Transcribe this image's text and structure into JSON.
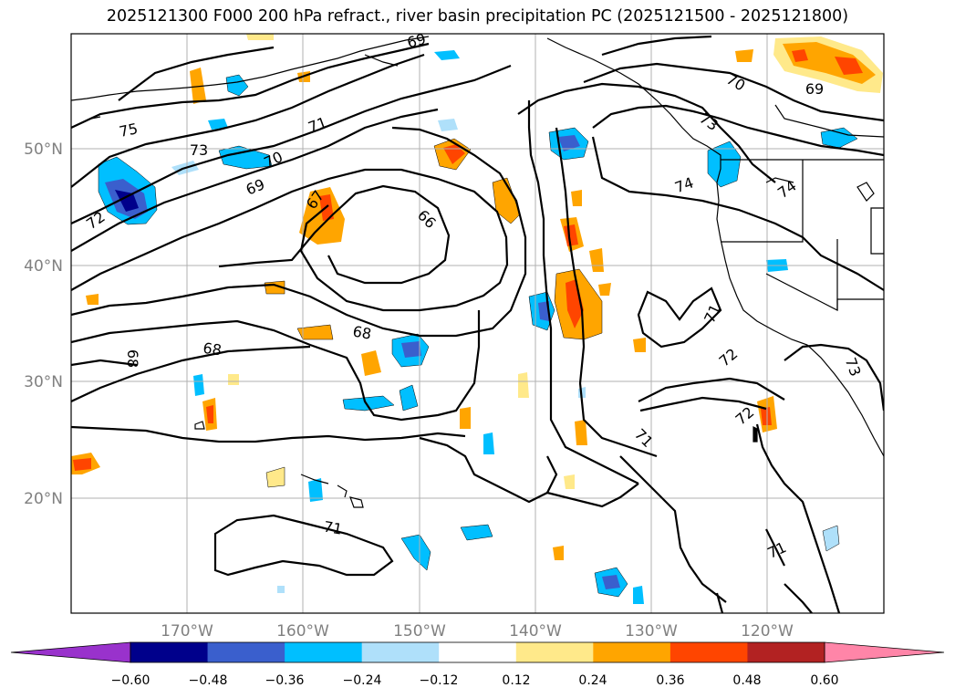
{
  "title": "2025121300 F000 200 hPa refract., river basin precipitation PC (2025121500 - 2025121800)",
  "map": {
    "lat_labels": [
      "50°N",
      "40°N",
      "30°N",
      "20°N"
    ],
    "lon_labels": [
      "170°W",
      "160°W",
      "150°W",
      "140°W",
      "130°W",
      "120°W"
    ],
    "contour_labels": [
      "75",
      "73",
      "71",
      "70",
      "69",
      "72",
      "67",
      "66",
      "68",
      "68",
      "68",
      "69",
      "70",
      "73",
      "74",
      "74",
      "71",
      "72",
      "72",
      "71",
      "71",
      "71",
      "73",
      "69"
    ],
    "shading_colors": {
      "neg_extreme": "#9932cc",
      "neg_048_060": "#00008b",
      "neg_036_048": "#3a5fcd",
      "neg_024_036": "#00bfff",
      "neg_012_024": "#afe0fa",
      "neutral": "#ffffff",
      "pos_012_024": "#ffe98a",
      "pos_024_036": "#ffa500",
      "pos_036_048": "#ff4500",
      "pos_048_060": "#b22222",
      "pos_extreme": "#ff85a8"
    }
  },
  "colorbar": {
    "tick_labels": [
      "−0.60",
      "−0.48",
      "−0.36",
      "−0.24",
      "−0.12",
      "0.12",
      "0.24",
      "0.36",
      "0.48",
      "0.60"
    ],
    "colors": [
      "#9932cc",
      "#00008b",
      "#3a5fcd",
      "#00bfff",
      "#afe0fa",
      "#ffffff",
      "#ffe98a",
      "#ffa500",
      "#ff4500",
      "#b22222",
      "#ff85a8"
    ]
  }
}
